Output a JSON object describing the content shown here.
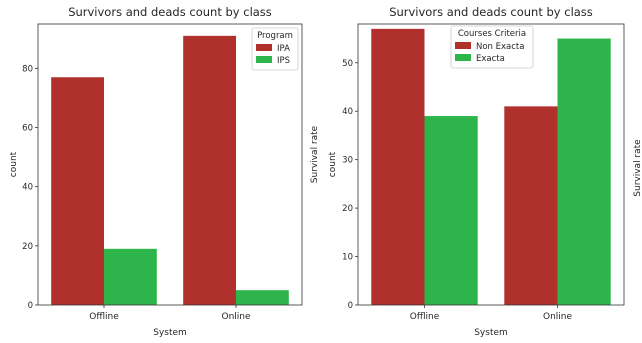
{
  "colors": {
    "series_a": "#B0312B",
    "series_b": "#2DB44B"
  },
  "chart_data": [
    {
      "type": "bar",
      "title": "Survivors and deads count by class",
      "xlabel": "System",
      "ylabel": "count",
      "categories": [
        "Offline",
        "Online"
      ],
      "series": [
        {
          "name": "IPA",
          "values": [
            77,
            91
          ]
        },
        {
          "name": "IPS",
          "values": [
            19,
            5
          ]
        }
      ],
      "ylim": [
        0,
        95
      ],
      "yticks": [
        0,
        20,
        40,
        60,
        80
      ],
      "legend": {
        "title": "Program",
        "position": "top-right"
      },
      "grid": false
    },
    {
      "type": "bar",
      "title": "Survivors and deads count by class",
      "xlabel": "System",
      "ylabel": "count",
      "ylabel_extra": "Survival rate",
      "categories": [
        "Offline",
        "Online"
      ],
      "series": [
        {
          "name": "Non Exacta",
          "values": [
            57,
            41
          ]
        },
        {
          "name": "Exacta",
          "values": [
            39,
            55
          ]
        }
      ],
      "ylim": [
        0,
        58
      ],
      "yticks": [
        0,
        10,
        20,
        30,
        40,
        50
      ],
      "legend": {
        "title": "Courses Criteria",
        "position": "top-center"
      },
      "grid": false
    }
  ],
  "extra_label": "Survival rate"
}
